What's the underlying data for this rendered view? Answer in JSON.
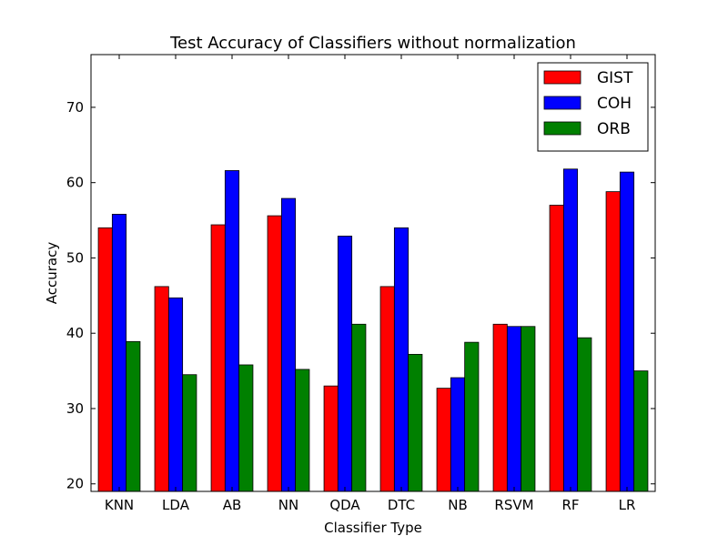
{
  "chart_data": {
    "type": "bar",
    "title": "Test Accuracy of Classifiers without normalization",
    "xlabel": "Classifier Type",
    "ylabel": "Accuracy",
    "ylim": [
      19,
      77
    ],
    "yticks": [
      20,
      30,
      40,
      50,
      60,
      70
    ],
    "grid": false,
    "legend_position": "top-right",
    "categories": [
      "KNN",
      "LDA",
      "AB",
      "NN",
      "QDA",
      "DTC",
      "NB",
      "RSVM",
      "RF",
      "LR"
    ],
    "series": [
      {
        "name": "GIST",
        "color": "#ff0000",
        "values": [
          54.0,
          46.2,
          54.4,
          55.6,
          33.0,
          46.2,
          32.7,
          41.2,
          57.0,
          58.8
        ]
      },
      {
        "name": "COH",
        "color": "#0000ff",
        "values": [
          55.8,
          44.7,
          61.6,
          57.9,
          52.9,
          54.0,
          34.1,
          40.9,
          61.8,
          61.4
        ]
      },
      {
        "name": "ORB",
        "color": "#008000",
        "values": [
          38.9,
          34.5,
          35.8,
          35.2,
          41.2,
          37.2,
          38.8,
          40.9,
          39.4,
          35.0
        ]
      }
    ]
  }
}
